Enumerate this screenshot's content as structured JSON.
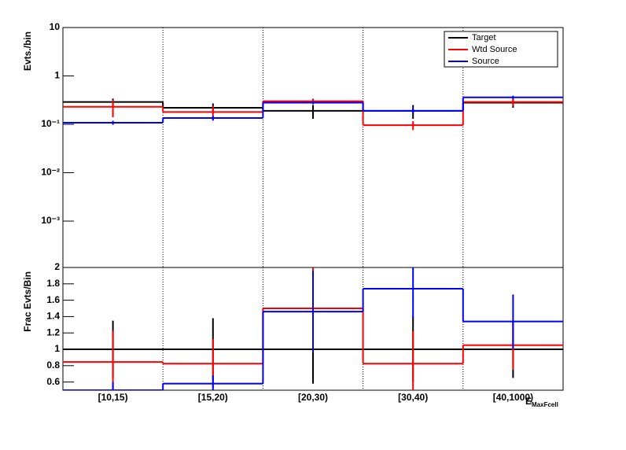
{
  "chart_data": [
    {
      "type": "step",
      "y_label": "Evts./bin",
      "log_y": true,
      "x_grid": true,
      "legend": "top-right",
      "ylim": [
        0.00011,
        10
      ],
      "yticks": [
        {
          "value": 10,
          "label": "10"
        },
        {
          "value": 1,
          "label": "1"
        },
        {
          "value": 0.1,
          "label": "10⁻¹"
        },
        {
          "value": 0.01,
          "label": "10⁻²"
        },
        {
          "value": 0.001,
          "label": "10⁻³"
        }
      ],
      "series": [
        {
          "name": "Target",
          "color": "#000000",
          "values": [
            0.29,
            0.22,
            0.19,
            0.19,
            0.28
          ],
          "errors": [
            0.05,
            0.05,
            0.06,
            0.06,
            0.06
          ]
        },
        {
          "name": "Wtd Source",
          "color": "#ff0000",
          "values": [
            0.23,
            0.18,
            0.3,
            0.096,
            0.29
          ],
          "errors": [
            0.09,
            0.06,
            0.04,
            0.02,
            0.05
          ]
        },
        {
          "name": "Source",
          "color": "#0000ff",
          "values": [
            0.108,
            0.135,
            0.28,
            0.19,
            0.36
          ],
          "errors": [
            0.01,
            0.015,
            0.02,
            0.02,
            0.03
          ]
        }
      ]
    },
    {
      "type": "step",
      "y_label": "Frac Evts/Bin",
      "x_label": "E",
      "x_label_sub": "MaxFcell",
      "x_grid": true,
      "categories": [
        "[10,15)",
        "[15,20)",
        "[20,30)",
        "[30,40)",
        "[40,1000)"
      ],
      "ylim": [
        0.5,
        2
      ],
      "yticks": [
        0.6,
        0.8,
        1,
        1.2,
        1.4,
        1.6,
        1.8,
        2
      ],
      "series": [
        {
          "color": "#000000",
          "values": [
            1,
            1,
            1,
            1,
            1
          ],
          "errors": [
            0.35,
            0.38,
            0.42,
            0.4,
            0.35
          ]
        },
        {
          "color": "#ff0000",
          "values": [
            0.845,
            0.825,
            1.5,
            0.825,
            1.05
          ],
          "errors": [
            0.38,
            0.3,
            0.5,
            0.4,
            0.3
          ]
        },
        {
          "color": "#0000ff",
          "values": [
            0.5,
            0.58,
            1.46,
            1.74,
            1.34
          ],
          "errors": [
            0.1,
            0.1,
            0.5,
            0.35,
            0.33
          ]
        }
      ]
    }
  ]
}
